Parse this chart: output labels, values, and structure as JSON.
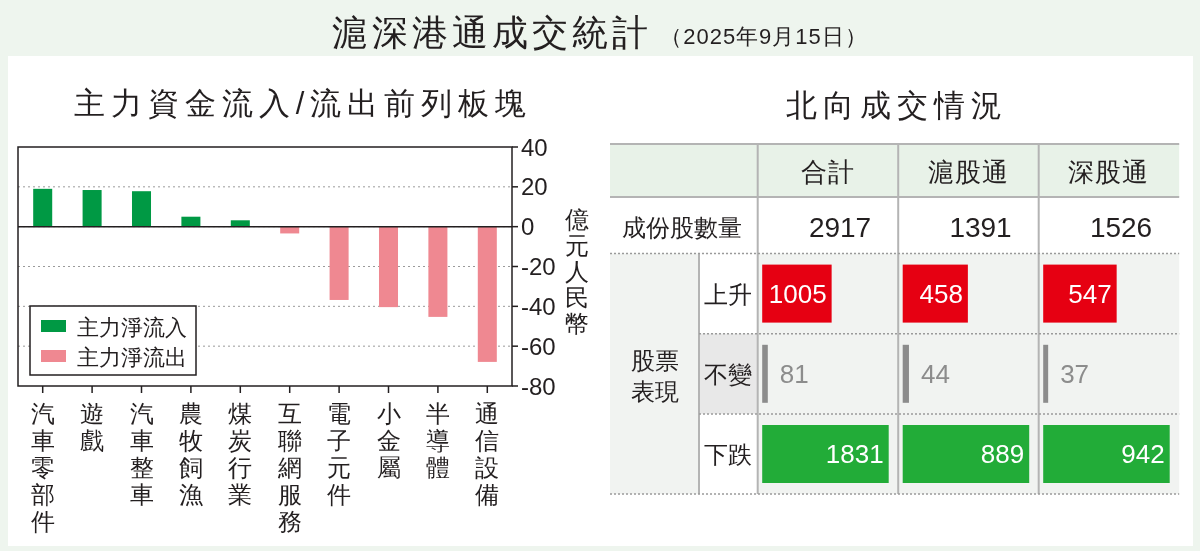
{
  "chart_data": [
    {
      "type": "other",
      "title": "滬深港通成交統計",
      "subtitle": "（2025年9月15日）"
    },
    {
      "type": "bar",
      "title": "主力資金流入/流出前列板塊",
      "ylabel": "億元人民幣",
      "categories": [
        "汽車零部件",
        "遊戲",
        "汽車整車",
        "農牧飼漁",
        "煤炭行業",
        "互聯網服務",
        "電子元件",
        "小金屬",
        "半導體",
        "通信設備"
      ],
      "series": [
        {
          "name": "主力淨流入",
          "color": "#009944",
          "values": [
            19,
            18.4,
            17.8,
            5,
            3.2,
            null,
            null,
            null,
            null,
            null
          ]
        },
        {
          "name": "主力淨流出",
          "color": "#ef8891",
          "values": [
            null,
            null,
            null,
            null,
            null,
            -3.4,
            -36.8,
            -40.4,
            -45.3,
            -67.9
          ]
        }
      ],
      "stacked": true,
      "ylim": [
        -80,
        40
      ],
      "yticks": [
        -80,
        -60,
        -40,
        -20,
        0,
        20,
        40
      ],
      "grid": "y",
      "legend": "bottom left",
      "ref_lines": [
        {
          "axis": "y",
          "value": 0,
          "color": "#231f20"
        }
      ]
    },
    {
      "type": "other",
      "title": "北向成交情況",
      "annotations": [
        "成份股數量"
      ]
    },
    {
      "type": "bar",
      "orientation": "horizontal",
      "title": "合計",
      "subtitle": "2917",
      "ylabel": "股票表現",
      "categories": [
        "上升",
        "不變",
        "下跌"
      ],
      "values": [
        1005,
        81,
        1831
      ],
      "colors": [
        "#e60012",
        "#8c8c8c",
        "#22ac38"
      ],
      "data_labels": true
    },
    {
      "type": "bar",
      "orientation": "horizontal",
      "title": "滬股通",
      "subtitle": "1391",
      "categories": [
        "上升",
        "不變",
        "下跌"
      ],
      "values": [
        458,
        44,
        889
      ],
      "colors": [
        "#e60012",
        "#8c8c8c",
        "#22ac38"
      ],
      "data_labels": true,
      "tick_labels": false
    },
    {
      "type": "bar",
      "orientation": "horizontal",
      "title": "深股通",
      "subtitle": "1526",
      "categories": [
        "上升",
        "不變",
        "下跌"
      ],
      "values": [
        547,
        37,
        942
      ],
      "colors": [
        "#e60012",
        "#8c8c8c",
        "#22ac38"
      ],
      "data_labels": true,
      "tick_labels": false
    }
  ]
}
